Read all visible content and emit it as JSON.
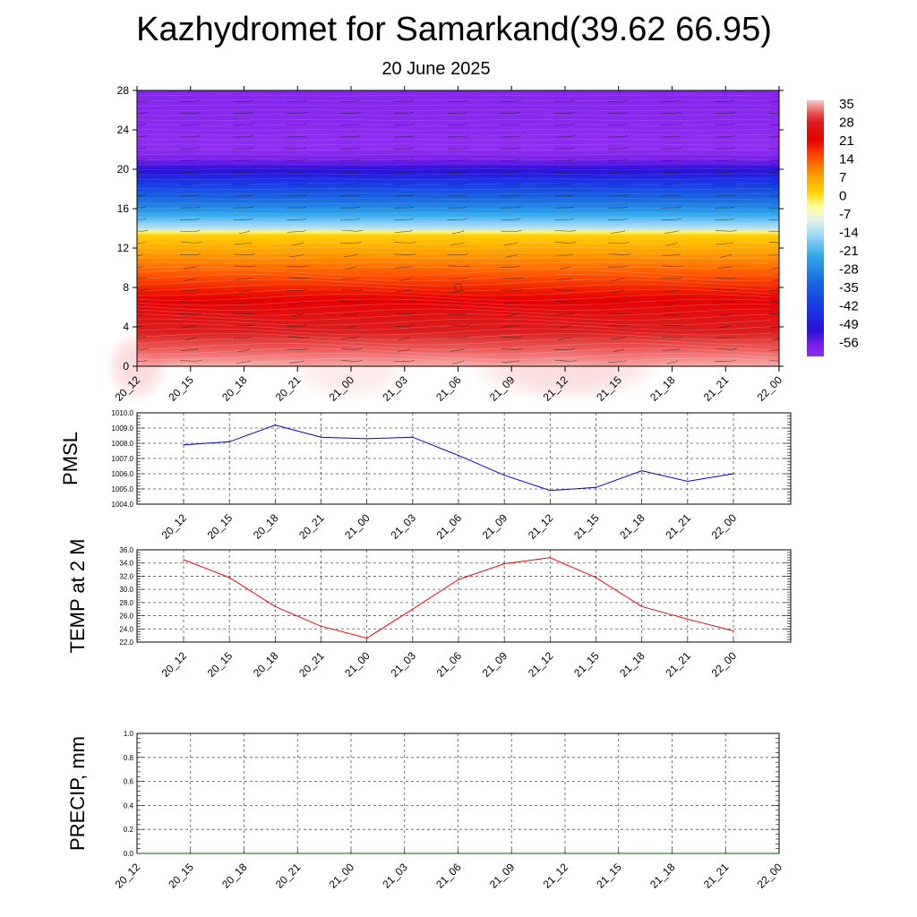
{
  "header": {
    "title": "Kazhydromet for Samarkand(39.62 66.95)",
    "subtitle": "20 June 2025"
  },
  "colors": {
    "pmsl_line": "#0000cc",
    "temp_line": "#ff0000",
    "precip_line": "#006400",
    "grid": "#555555"
  },
  "chart_data": [
    {
      "type": "heatmap",
      "name": "cross-section",
      "title": "",
      "xlabel": "",
      "ylabel": "",
      "x": [
        "20_12",
        "20_15",
        "20_18",
        "20_21",
        "21_00",
        "21_03",
        "21_06",
        "21_09",
        "21_12",
        "21_15",
        "21_18",
        "21_21",
        "22_00"
      ],
      "ylim": [
        0,
        28
      ],
      "yticks": [
        0,
        4,
        8,
        12,
        16,
        20,
        24,
        28
      ],
      "legend": {
        "placement": "right",
        "labels": [
          "35",
          "28",
          "21",
          "14",
          "7",
          "0",
          "-7",
          "-14",
          "-21",
          "-28",
          "-35",
          "-42",
          "-49",
          "-56"
        ]
      },
      "value_levels": [
        0,
        2,
        4,
        6,
        8,
        10,
        12,
        13.5,
        14,
        16,
        18,
        20,
        21,
        22,
        28
      ],
      "value_temps": [
        34,
        30,
        26,
        22,
        17,
        11,
        5,
        0,
        -14,
        -28,
        -40,
        -52,
        -58,
        -62,
        -60
      ],
      "wind_barbs": true
    },
    {
      "type": "line",
      "name": "pmsl",
      "ylabel": "PMSL",
      "x": [
        "20_12",
        "20_15",
        "20_18",
        "20_21",
        "21_00",
        "21_03",
        "21_06",
        "21_09",
        "21_12",
        "21_15",
        "21_18",
        "21_21",
        "22_00"
      ],
      "values": [
        1007.9,
        1008.1,
        1009.2,
        1008.4,
        1008.3,
        1008.4,
        1007.2,
        1005.9,
        1004.9,
        1005.1,
        1006.2,
        1005.5,
        1006.0
      ],
      "ylim": [
        1004.0,
        1010.0
      ],
      "yticks": [
        "1004.0",
        "1005.0",
        "1006.0",
        "1007.0",
        "1008.0",
        "1009.0",
        "1010.0"
      ],
      "grid": true
    },
    {
      "type": "line",
      "name": "temp",
      "ylabel": "TEMP at 2 M",
      "x": [
        "20_12",
        "20_15",
        "20_18",
        "20_21",
        "21_00",
        "21_03",
        "21_06",
        "21_09",
        "21_12",
        "21_15",
        "21_18",
        "21_21",
        "22_00"
      ],
      "values": [
        34.5,
        31.8,
        27.4,
        24.4,
        22.6,
        27.0,
        31.5,
        33.9,
        34.8,
        31.8,
        27.4,
        25.5,
        23.7
      ],
      "ylim": [
        22.0,
        36.0
      ],
      "yticks": [
        "22.0",
        "24.0",
        "26.0",
        "28.0",
        "30.0",
        "32.0",
        "34.0",
        "36.0"
      ],
      "grid": true
    },
    {
      "type": "line",
      "name": "precip",
      "ylabel": "PRECIP, mm",
      "x": [
        "20_12",
        "20_15",
        "20_18",
        "20_21",
        "21_00",
        "21_03",
        "21_06",
        "21_09",
        "21_12",
        "21_15",
        "21_18",
        "21_21",
        "22_00"
      ],
      "values": [
        0,
        0,
        0,
        0,
        0,
        0,
        0,
        0,
        0,
        0,
        0,
        0,
        0
      ],
      "ylim": [
        0.0,
        1.0
      ],
      "yticks": [
        "0.0",
        "0.2",
        "0.4",
        "0.6",
        "0.8",
        "1.0"
      ],
      "grid": true
    }
  ]
}
